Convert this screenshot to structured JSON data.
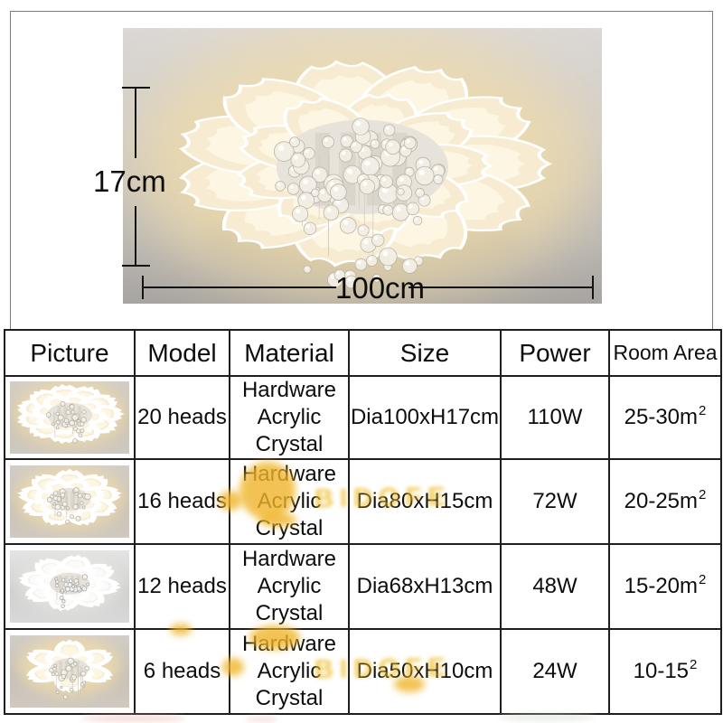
{
  "image_panel": {
    "height_label": "17cm",
    "width_label": "100cm"
  },
  "table": {
    "headers": [
      "Picture",
      "Model",
      "Material",
      "Size",
      "Power",
      "Room Area"
    ],
    "rows": [
      {
        "model": "20 heads",
        "material": [
          "Hardware",
          "Acrylic",
          "Crystal"
        ],
        "size": "Dia100xH17cm",
        "power": "110W",
        "area": "25-30m",
        "area_sup": "2",
        "picture": {
          "tone": "warm",
          "heads": 20
        }
      },
      {
        "model": "16 heads",
        "material": [
          "Hardware",
          "Acrylic",
          "Crystal"
        ],
        "size": "Dia80xH15cm",
        "power": "72W",
        "area": "20-25m",
        "area_sup": "2",
        "picture": {
          "tone": "warm",
          "heads": 16
        }
      },
      {
        "model": "12 heads",
        "material": [
          "Hardware",
          "Acrylic",
          "Crystal"
        ],
        "size": "Dia68xH13cm",
        "power": "48W",
        "area": "15-20m",
        "area_sup": "2",
        "picture": {
          "tone": "cool",
          "heads": 12
        }
      },
      {
        "model": "6 heads",
        "material": [
          "Hardware",
          "Acrylic",
          "Crystal"
        ],
        "size": "Dia50xH10cm",
        "power": "24W",
        "area": "10-15",
        "area_sup": "2",
        "picture": {
          "tone": "warm",
          "heads": 6
        }
      }
    ]
  },
  "watermark": {
    "text": "BIDOFE",
    "color": "#efbe2e"
  },
  "colors": {
    "table_border": "#1e1e1e",
    "photo_bg_top": "#dbd8d5",
    "photo_bg_bottom": "#a7a4a1",
    "lamp_warm": "#f7ecd2",
    "watermark_yellow": "#f0b52a"
  }
}
